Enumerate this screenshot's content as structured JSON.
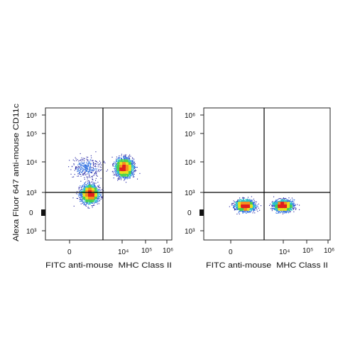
{
  "chart_data": [
    {
      "type": "scatter",
      "subtype": "flow-cytometry-density-dot-plot",
      "title": "",
      "xlabel": "FITC anti-mouse  MHC Class II",
      "ylabel": "Alexa Fluor 647 anti-mouse CD11c",
      "x_scale": "biexponential",
      "y_scale": "biexponential",
      "x_tick_labels": [
        "0",
        "10⁴",
        "10⁵",
        "10⁶"
      ],
      "y_tick_labels": [
        "10³",
        "0",
        "10³",
        "10⁴",
        "10⁵",
        "10⁶"
      ],
      "x_ticks": [
        0,
        10000,
        100000,
        1000000
      ],
      "y_ticks": [
        -1000,
        0,
        1000,
        10000,
        100000,
        1000000
      ],
      "quadrant_gate": {
        "x": 2000,
        "y": 1000
      },
      "grid": false,
      "legend": "none",
      "color_scale": [
        "#1a1aa0",
        "#2f6fe0",
        "#27c2c8",
        "#48d050",
        "#e8e020",
        "#f59020",
        "#e02020"
      ],
      "populations": [
        {
          "center_x": 300,
          "center_y": 300,
          "spread": "wide",
          "relative_density": "high"
        },
        {
          "center_x": 10000,
          "center_y": 4000,
          "spread": "wide",
          "relative_density": "high"
        },
        {
          "center_x": 200,
          "center_y": 4000,
          "spread": "diffuse",
          "relative_density": "low"
        }
      ]
    },
    {
      "type": "scatter",
      "subtype": "flow-cytometry-density-dot-plot",
      "title": "",
      "xlabel": "FITC anti-mouse  MHC Class II",
      "ylabel": "",
      "x_scale": "biexponential",
      "y_scale": "biexponential",
      "x_tick_labels": [
        "0",
        "10⁴",
        "10⁵",
        "10⁶"
      ],
      "y_tick_labels": [
        "10³",
        "0",
        "10³",
        "10⁴",
        "10⁵",
        "10⁶"
      ],
      "x_ticks": [
        0,
        10000,
        100000,
        1000000
      ],
      "y_ticks": [
        -1000,
        0,
        1000,
        10000,
        100000,
        1000000
      ],
      "quadrant_gate": {
        "x": 2000,
        "y": 1000
      },
      "grid": false,
      "legend": "none",
      "color_scale": [
        "#1a1aa0",
        "#2f6fe0",
        "#27c2c8",
        "#48d050",
        "#e8e020",
        "#f59020",
        "#e02020"
      ],
      "populations": [
        {
          "center_x": 200,
          "center_y": 50,
          "spread": "horizontal",
          "relative_density": "high"
        },
        {
          "center_x": 10000,
          "center_y": 50,
          "spread": "horizontal",
          "relative_density": "high"
        }
      ]
    }
  ]
}
